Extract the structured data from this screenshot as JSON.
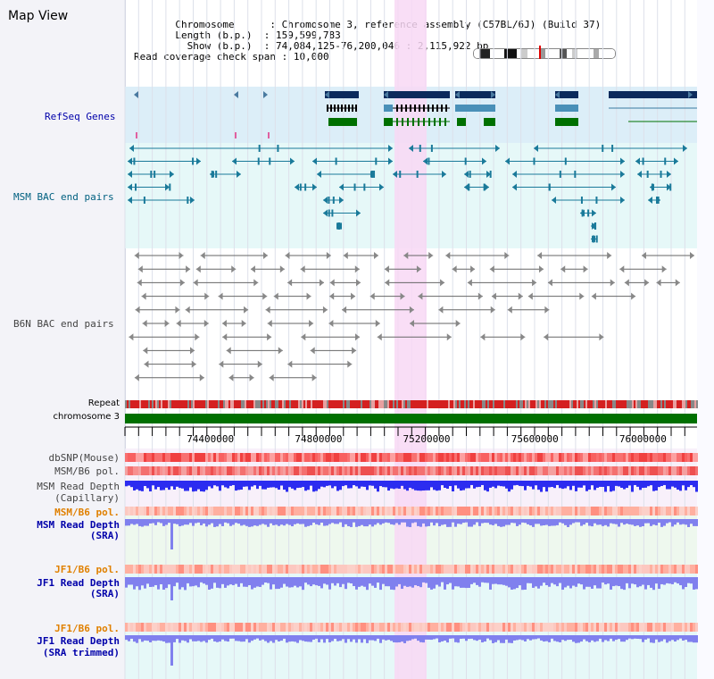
{
  "title": "Map View",
  "header": {
    "chromosome_key": "Chromosome",
    "chromosome_val": "Chromosome 3, reference assembly (C57BL/6J) (Build 37)",
    "length_key": "Length (b.p.)",
    "length_val": "159,599,783",
    "show_key": "Show (b.p.)",
    "show_val": "74,084,125-76,200,046 : 2,115,922 bp",
    "coverage_key": "Read coverage check span",
    "coverage_val": "10,000"
  },
  "tracks": {
    "refseq": "RefSeq Genes",
    "msm_bac": "MSM BAC end pairs",
    "b6n_bac": "B6N BAC end pairs",
    "repeat": "Repeat",
    "chromosome": "chromosome 3",
    "dbsnp": "dbSNP(Mouse)",
    "msm_b6_pol": "MSM/B6 pol.",
    "msm_depth_cap_1": "MSM Read Depth",
    "msm_depth_cap_2": "(Capillary)",
    "msm_b6_pol_sra": "MSM/B6 pol.",
    "msm_depth_sra_1": "MSM Read Depth",
    "msm_depth_sra_2": "(SRA)",
    "jf1_b6_pol": "JF1/B6 pol.",
    "jf1_depth_sra_1": "JF1 Read Depth",
    "jf1_depth_sra_2": "(SRA)",
    "jf1_b6_pol_trim": "JF1/B6 pol.",
    "jf1_depth_trim_1": "JF1 Read Depth",
    "jf1_depth_trim_2": "(SRA trimmed)"
  },
  "axis": {
    "ticks": [
      {
        "value": 74400000,
        "label": "74400000"
      },
      {
        "value": 74800000,
        "label": "74800000"
      },
      {
        "value": 75200000,
        "label": "75200000"
      },
      {
        "value": 75600000,
        "label": "75600000"
      },
      {
        "value": 76000000,
        "label": "76000000"
      }
    ],
    "start": 74084125,
    "end": 76200046
  },
  "colors": {
    "refseq_bg": "#dceef8",
    "bac_bg": "#e6f8f8",
    "highlight": "#f8d8f4",
    "refseq_dark": "#0c2a5c",
    "refseq_mid": "#4a90b8",
    "refseq_green": "#007000",
    "msm_bac": "#1a7a9a",
    "b6n_bac": "#666666",
    "chromosome": "#007000",
    "label_blue": "#0000aa",
    "label_teal": "#006080",
    "label_orange": "#e08000",
    "depth_blue": "#2c2cf0",
    "depth_light": "#8080ee"
  }
}
